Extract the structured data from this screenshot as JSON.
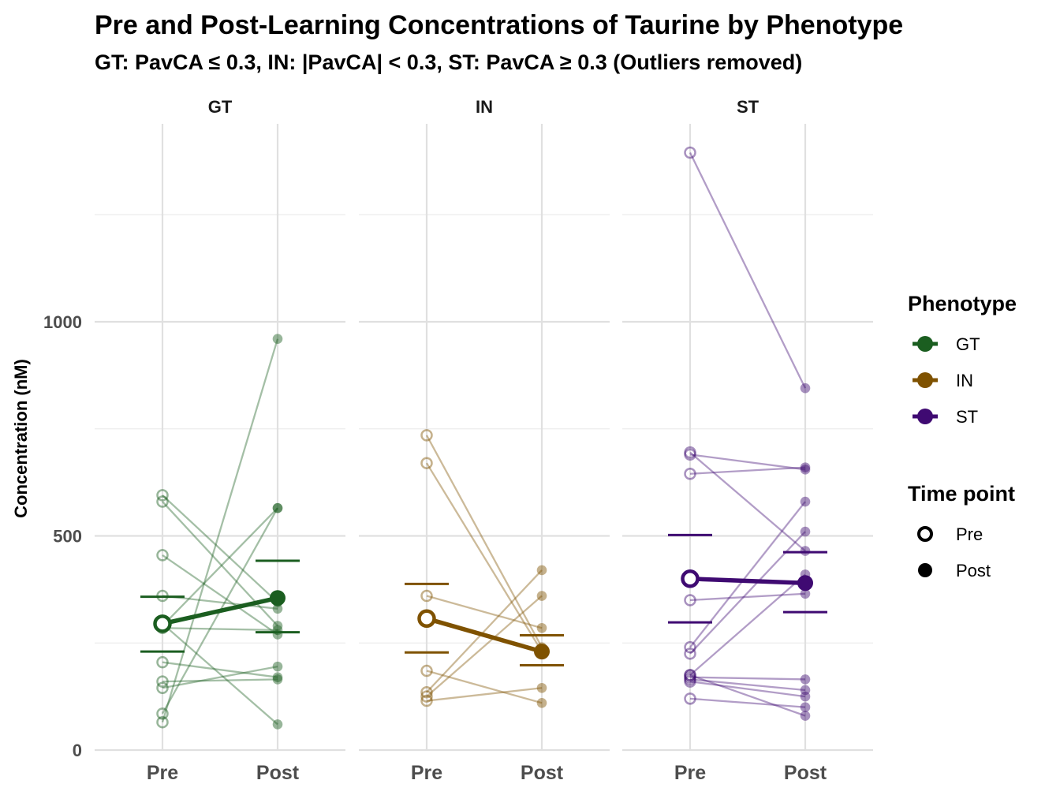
{
  "chart_data": {
    "type": "line",
    "title": "Pre and Post-Learning Concentrations of Taurine by Phenotype",
    "subtitle": "GT: PavCA ≤ 0.3, IN: |PavCA| < 0.3, ST: PavCA ≥ 0.3 (Outliers removed)",
    "ylabel": "Concentration (nM)",
    "xlabel": "",
    "categories": [
      "Pre",
      "Post"
    ],
    "ylim": [
      0,
      1400
    ],
    "yticks": [
      0,
      500,
      1000
    ],
    "grid": true,
    "legend": {
      "position": "right",
      "phenotype_title": "Phenotype",
      "timepoint_title": "Time point",
      "phenotypes": [
        {
          "name": "GT",
          "color": "#1b5e20"
        },
        {
          "name": "IN",
          "color": "#7f5200"
        },
        {
          "name": "ST",
          "color": "#3f0a72"
        }
      ],
      "timepoints": [
        {
          "name": "Pre",
          "shape": "open-circle"
        },
        {
          "name": "Post",
          "shape": "filled-circle"
        }
      ]
    },
    "panels": [
      {
        "name": "GT",
        "color": "#1b5e20",
        "pairs": [
          [
            595,
            345
          ],
          [
            580,
            290
          ],
          [
            455,
            270
          ],
          [
            360,
            330
          ],
          [
            290,
            565
          ],
          [
            205,
            170
          ],
          [
            160,
            165
          ],
          [
            145,
            195
          ],
          [
            85,
            565
          ],
          [
            65,
            960
          ],
          [
            295,
            60
          ],
          [
            285,
            280
          ]
        ],
        "mean": {
          "pre": 295,
          "post": 355
        },
        "error": {
          "pre": [
            230,
            358
          ],
          "post": [
            275,
            442
          ]
        }
      },
      {
        "name": "IN",
        "color": "#7f5200",
        "pairs": [
          [
            735,
            240
          ],
          [
            670,
            230
          ],
          [
            360,
            285
          ],
          [
            185,
            110
          ],
          [
            135,
            420
          ],
          [
            125,
            360
          ],
          [
            115,
            145
          ]
        ],
        "mean": {
          "pre": 307,
          "post": 230
        },
        "error": {
          "pre": [
            228,
            388
          ],
          "post": [
            198,
            268
          ]
        }
      },
      {
        "name": "ST",
        "color": "#3f0a72",
        "pairs": [
          [
            1395,
            845
          ],
          [
            695,
            465
          ],
          [
            690,
            655
          ],
          [
            645,
            660
          ],
          [
            350,
            365
          ],
          [
            240,
            580
          ],
          [
            225,
            510
          ],
          [
            175,
            410
          ],
          [
            170,
            165
          ],
          [
            165,
            140
          ],
          [
            160,
            125
          ],
          [
            120,
            100
          ],
          [
            175,
            80
          ]
        ],
        "mean": {
          "pre": 400,
          "post": 390
        },
        "error": {
          "pre": [
            298,
            502
          ],
          "post": [
            322,
            462
          ]
        }
      }
    ]
  }
}
